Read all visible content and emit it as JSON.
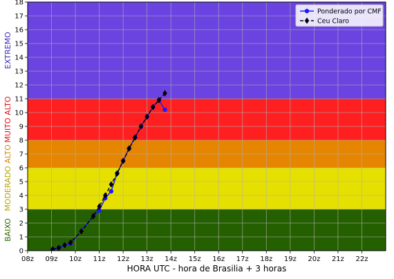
{
  "chart_data": {
    "type": "line",
    "xlabel": "HORA UTC - hora de Brasilia + 3 horas",
    "ylabel": "",
    "xlim": [
      8,
      23
    ],
    "ylim": [
      0,
      18
    ],
    "x_ticks": [
      {
        "v": 8,
        "label": "08z"
      },
      {
        "v": 9,
        "label": "09z"
      },
      {
        "v": 10,
        "label": "10z"
      },
      {
        "v": 11,
        "label": "11z"
      },
      {
        "v": 12,
        "label": "12z"
      },
      {
        "v": 13,
        "label": "13z"
      },
      {
        "v": 14,
        "label": "14z"
      },
      {
        "v": 15,
        "label": "15z"
      },
      {
        "v": 16,
        "label": "16z"
      },
      {
        "v": 17,
        "label": "17z"
      },
      {
        "v": 18,
        "label": "18z"
      },
      {
        "v": 19,
        "label": "19z"
      },
      {
        "v": 20,
        "label": "20z"
      },
      {
        "v": 21,
        "label": "21z"
      },
      {
        "v": 22,
        "label": "22z"
      }
    ],
    "y_ticks": [
      0,
      1,
      2,
      3,
      4,
      5,
      6,
      7,
      8,
      9,
      10,
      11,
      12,
      13,
      14,
      15,
      16,
      17,
      18
    ],
    "grid": true,
    "legend_position": "top-right",
    "bands": [
      {
        "label": "BAIXO",
        "from": 0,
        "to": 3,
        "color": "#256000",
        "label_color": "#2d6b00"
      },
      {
        "label": "MODERADO",
        "from": 3,
        "to": 6,
        "color": "#e6e000",
        "label_color": "#b5a400"
      },
      {
        "label": "ALTO",
        "from": 6,
        "to": 8,
        "color": "#e58500",
        "label_color": "#d98500"
      },
      {
        "label": "MUITO ALTO",
        "from": 8,
        "to": 11,
        "color": "#fe2020",
        "label_color": "#e01010"
      },
      {
        "label": "EXTREMO",
        "from": 11,
        "to": 18,
        "color": "#6a43e0",
        "label_color": "#3a2ab8"
      }
    ],
    "series": [
      {
        "name": "Ponderado por CMF",
        "color": "#1a1aff",
        "marker": "circle",
        "linestyle": "solid",
        "x": [
          9.05,
          9.3,
          9.55,
          9.8,
          10.75,
          11.0,
          11.25,
          11.5,
          11.75,
          12.0,
          12.25,
          12.5,
          12.75,
          13.0,
          13.25,
          13.5,
          13.75
        ],
        "y": [
          0.1,
          0.2,
          0.4,
          0.5,
          2.5,
          2.9,
          3.8,
          4.3,
          5.6,
          6.5,
          7.4,
          8.2,
          9.0,
          9.7,
          10.4,
          10.9,
          10.2
        ]
      },
      {
        "name": "Ceu Claro",
        "color": "#000000",
        "marker": "diamond",
        "linestyle": "dashed",
        "x": [
          9.05,
          9.3,
          9.55,
          9.8,
          10.25,
          10.75,
          11.0,
          11.25,
          11.5,
          11.75,
          12.0,
          12.25,
          12.5,
          12.75,
          13.0,
          13.25,
          13.5,
          13.75
        ],
        "y": [
          0.1,
          0.2,
          0.4,
          0.6,
          1.4,
          2.5,
          3.2,
          4.0,
          4.8,
          5.6,
          6.5,
          7.4,
          8.2,
          9.0,
          9.7,
          10.4,
          10.9,
          11.4
        ]
      }
    ]
  }
}
